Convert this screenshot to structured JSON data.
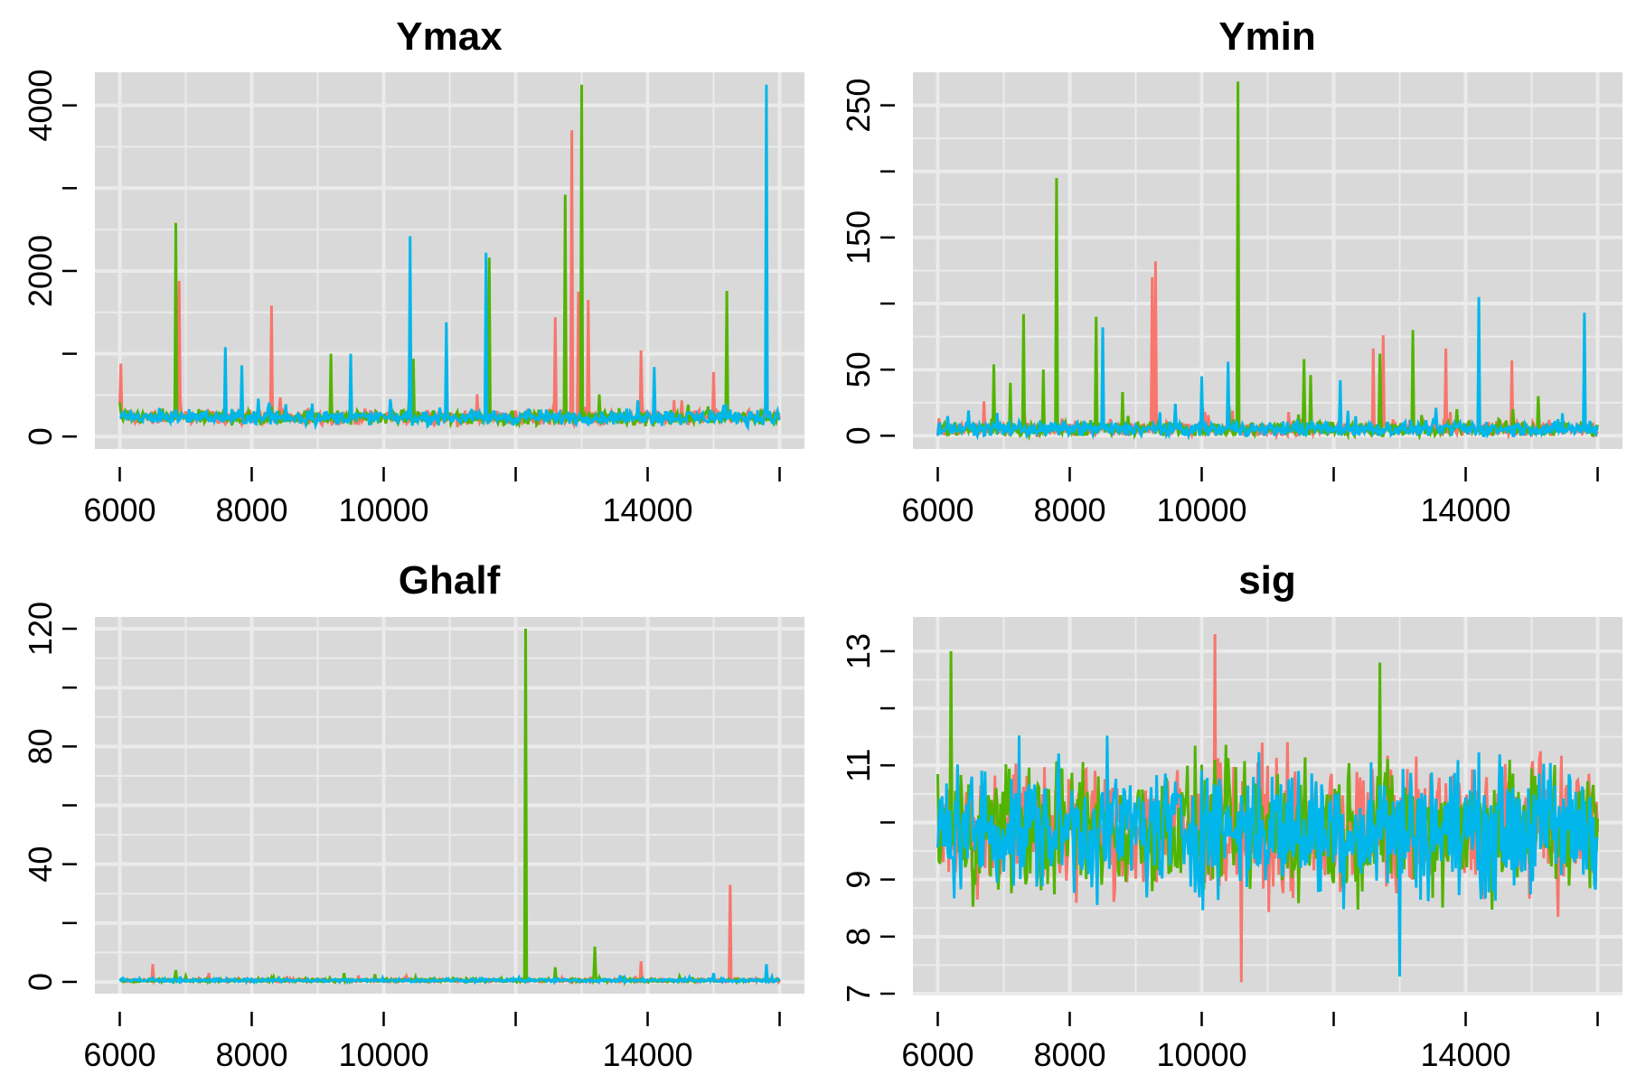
{
  "colors": {
    "series1": "#F8766D",
    "series2": "#53B400",
    "series3": "#00B6EB",
    "panel_bg": "#D9D9D9",
    "grid": "#EBEBEB"
  },
  "chart_data": [
    {
      "type": "line",
      "title": "Ymax",
      "xlim": [
        6000,
        16000
      ],
      "ylim": [
        -150,
        4400
      ],
      "xticks": [
        6000,
        8000,
        10000,
        12000,
        14000,
        16000
      ],
      "xtick_labels": [
        "6000",
        "8000",
        "10000",
        "",
        "14000",
        ""
      ],
      "yticks": [
        0,
        1000,
        2000,
        3000,
        4000
      ],
      "ytick_labels": [
        "0",
        "",
        "2000",
        "",
        "4000"
      ],
      "grid": true,
      "legend": "none",
      "baseline": 230,
      "noise": 60,
      "spikes": [
        [
          0,
          6010,
          880
        ],
        [
          1,
          6850,
          2580
        ],
        [
          0,
          6900,
          1880
        ],
        [
          2,
          7600,
          1080
        ],
        [
          2,
          7850,
          860
        ],
        [
          0,
          8300,
          1580
        ],
        [
          1,
          9200,
          1000
        ],
        [
          2,
          9500,
          1000
        ],
        [
          2,
          10400,
          2420
        ],
        [
          1,
          10450,
          940
        ],
        [
          2,
          10950,
          1380
        ],
        [
          2,
          11550,
          2220
        ],
        [
          1,
          11600,
          2160
        ],
        [
          0,
          12600,
          1440
        ],
        [
          1,
          12750,
          2920
        ],
        [
          0,
          12850,
          3700
        ],
        [
          0,
          12950,
          1750
        ],
        [
          1,
          13000,
          4250
        ],
        [
          0,
          13100,
          1650
        ],
        [
          0,
          13900,
          1040
        ],
        [
          2,
          14100,
          840
        ],
        [
          0,
          15000,
          780
        ],
        [
          1,
          15200,
          1760
        ],
        [
          2,
          15800,
          4250
        ]
      ]
    },
    {
      "type": "line",
      "title": "Ymin",
      "xlim": [
        6000,
        16000
      ],
      "ylim": [
        -10,
        275
      ],
      "xticks": [
        6000,
        8000,
        10000,
        12000,
        14000,
        16000
      ],
      "xtick_labels": [
        "6000",
        "8000",
        "10000",
        "",
        "14000",
        ""
      ],
      "yticks": [
        0,
        50,
        100,
        150,
        200,
        250
      ],
      "ytick_labels": [
        "0",
        "50",
        "",
        "150",
        "",
        "250"
      ],
      "grid": true,
      "legend": "none",
      "baseline": 5,
      "noise": 4,
      "spikes": [
        [
          1,
          6850,
          54
        ],
        [
          1,
          7100,
          40
        ],
        [
          1,
          7300,
          92
        ],
        [
          1,
          7600,
          50
        ],
        [
          1,
          7800,
          195
        ],
        [
          1,
          8400,
          90
        ],
        [
          2,
          8500,
          82
        ],
        [
          1,
          8800,
          33
        ],
        [
          0,
          9250,
          120
        ],
        [
          0,
          9300,
          132
        ],
        [
          2,
          10000,
          45
        ],
        [
          2,
          10400,
          56
        ],
        [
          1,
          10550,
          268
        ],
        [
          1,
          11550,
          58
        ],
        [
          1,
          11650,
          46
        ],
        [
          2,
          12100,
          42
        ],
        [
          0,
          12600,
          66
        ],
        [
          0,
          12750,
          76
        ],
        [
          1,
          12700,
          62
        ],
        [
          1,
          13200,
          80
        ],
        [
          0,
          13700,
          66
        ],
        [
          2,
          14200,
          105
        ],
        [
          0,
          14700,
          57
        ],
        [
          1,
          15100,
          30
        ],
        [
          2,
          15800,
          93
        ]
      ]
    },
    {
      "type": "line",
      "title": "Ghalf",
      "xlim": [
        6000,
        16000
      ],
      "ylim": [
        -4,
        124
      ],
      "xticks": [
        6000,
        8000,
        10000,
        12000,
        14000,
        16000
      ],
      "xtick_labels": [
        "6000",
        "8000",
        "10000",
        "",
        "14000",
        ""
      ],
      "yticks": [
        0,
        20,
        40,
        60,
        80,
        100,
        120
      ],
      "ytick_labels": [
        "0",
        "",
        "40",
        "",
        "80",
        "",
        "120"
      ],
      "grid": true,
      "legend": "none",
      "baseline": 0.5,
      "noise": 0.4,
      "spikes": [
        [
          0,
          6500,
          6
        ],
        [
          1,
          6850,
          4
        ],
        [
          0,
          7350,
          3
        ],
        [
          1,
          9400,
          3
        ],
        [
          1,
          12150,
          120
        ],
        [
          1,
          12600,
          5
        ],
        [
          1,
          13200,
          12
        ],
        [
          0,
          13900,
          7
        ],
        [
          2,
          15000,
          3
        ],
        [
          0,
          15250,
          33
        ],
        [
          2,
          15800,
          6
        ]
      ]
    },
    {
      "type": "line",
      "title": "sig",
      "xlim": [
        6000,
        16000
      ],
      "ylim": [
        7,
        13.6
      ],
      "xticks": [
        6000,
        8000,
        10000,
        12000,
        14000,
        16000
      ],
      "xtick_labels": [
        "6000",
        "8000",
        "10000",
        "",
        "14000",
        ""
      ],
      "yticks": [
        7,
        8,
        9,
        10,
        11,
        12,
        13
      ],
      "ytick_labels": [
        "7",
        "8",
        "9",
        "",
        "11",
        "",
        "13"
      ],
      "grid": true,
      "legend": "none",
      "baseline": 9.9,
      "noise": 0.8,
      "spikes": [
        [
          0,
          10200,
          13.3
        ],
        [
          1,
          6200,
          13.0
        ],
        [
          2,
          13000,
          7.3
        ],
        [
          0,
          10600,
          7.2
        ],
        [
          1,
          12700,
          12.8
        ]
      ]
    }
  ]
}
